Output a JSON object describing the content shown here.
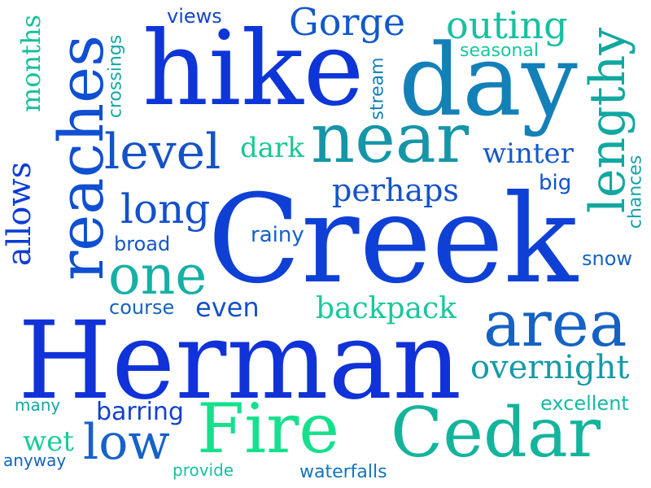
{
  "words": [
    {
      "text": "Herman",
      "color": "#1032d8"
    },
    {
      "text": "Creek",
      "color": "#0f40d6"
    },
    {
      "text": "hike",
      "color": "#0d35d8"
    },
    {
      "text": "day",
      "color": "#1480b8"
    },
    {
      "text": "reaches",
      "color": "#0f4fd2"
    },
    {
      "text": "near",
      "color": "#1496a8"
    },
    {
      "text": "lengthy",
      "color": "#10a8a0"
    },
    {
      "text": "Fire",
      "color": "#16e08c"
    },
    {
      "text": "Cedar",
      "color": "#14b49c"
    },
    {
      "text": "area",
      "color": "#1562c4"
    },
    {
      "text": "one",
      "color": "#16b0a4"
    },
    {
      "text": "level",
      "color": "#1552c8"
    },
    {
      "text": "long",
      "color": "#1450cc"
    },
    {
      "text": "low",
      "color": "#1662c8"
    },
    {
      "text": "Gorge",
      "color": "#1258cc"
    },
    {
      "text": "outing",
      "color": "#16c0a0"
    },
    {
      "text": "allows",
      "color": "#0f3cd4"
    },
    {
      "text": "overnight",
      "color": "#149aa8"
    },
    {
      "text": "perhaps",
      "color": "#1453c8"
    },
    {
      "text": "backpack",
      "color": "#18c89c"
    },
    {
      "text": "winter",
      "color": "#1658c8"
    },
    {
      "text": "dark",
      "color": "#1ac896"
    },
    {
      "text": "months",
      "color": "#16c09c"
    },
    {
      "text": "crossings",
      "color": "#14a8a4"
    },
    {
      "text": "views",
      "color": "#1446cc"
    },
    {
      "text": "seasonal",
      "color": "#18c89c"
    },
    {
      "text": "stream",
      "color": "#1480b8"
    },
    {
      "text": "big",
      "color": "#1450cc"
    },
    {
      "text": "chances",
      "color": "#15a4a8"
    },
    {
      "text": "snow",
      "color": "#1662c4"
    },
    {
      "text": "rainy",
      "color": "#1460c4"
    },
    {
      "text": "broad",
      "color": "#1456c8"
    },
    {
      "text": "course",
      "color": "#1562c4"
    },
    {
      "text": "even",
      "color": "#1450cc"
    },
    {
      "text": "excellent",
      "color": "#16bca0"
    },
    {
      "text": "barring",
      "color": "#1440d0"
    },
    {
      "text": "many",
      "color": "#14a8a4"
    },
    {
      "text": "wet",
      "color": "#18cc98"
    },
    {
      "text": "anyway",
      "color": "#1464c4"
    },
    {
      "text": "provide",
      "color": "#18c09c"
    },
    {
      "text": "waterfalls",
      "color": "#1474bc"
    }
  ]
}
